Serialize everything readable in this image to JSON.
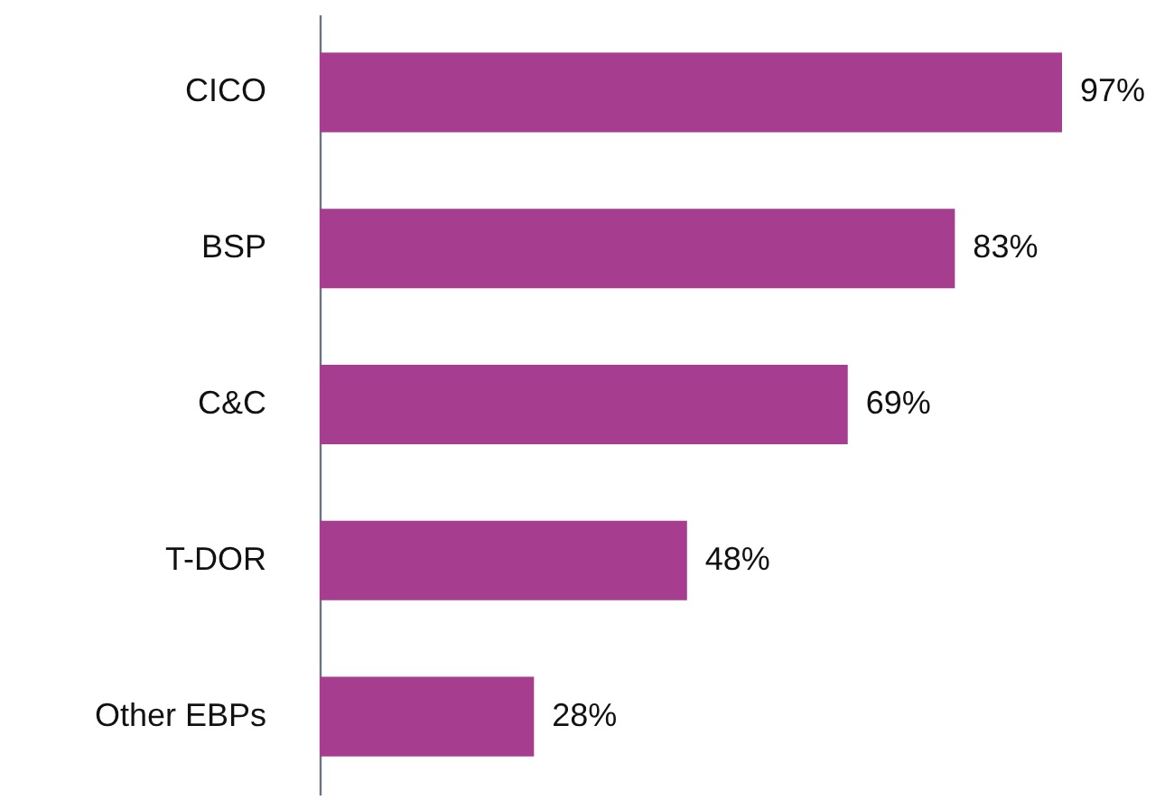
{
  "chart_data": {
    "type": "bar",
    "orientation": "horizontal",
    "categories": [
      "CICO",
      "BSP",
      "C&C",
      "T-DOR",
      "Other EBPs"
    ],
    "values": [
      97,
      83,
      69,
      48,
      28
    ],
    "value_labels": [
      "97%",
      "83%",
      "69%",
      "48%",
      "28%"
    ],
    "color": "#a63d8f"
  }
}
